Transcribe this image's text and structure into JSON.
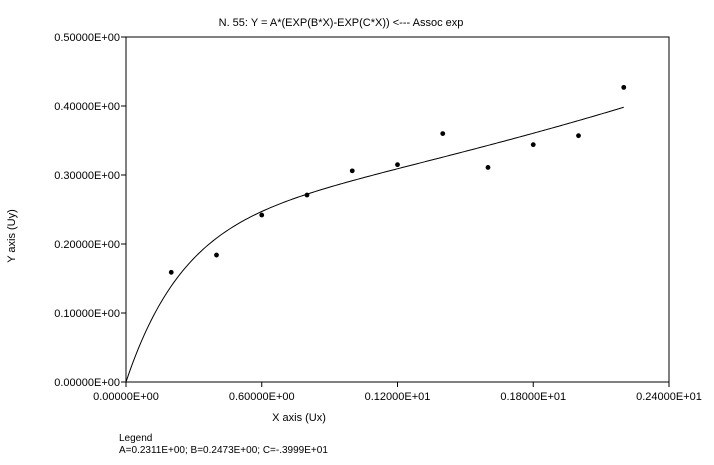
{
  "chart_data": {
    "type": "scatter",
    "title": "N. 55:  Y = A*(EXP(B*X)-EXP(C*X)) <--- Assoc exp",
    "xlabel": "X axis (Ux)",
    "ylabel": "Y axis (Uy)",
    "xlim": [
      0,
      2.4
    ],
    "ylim": [
      0,
      0.5
    ],
    "x_ticks": [
      0,
      0.6,
      1.2,
      1.8,
      2.4
    ],
    "x_tick_labels": [
      "0.00000E+00",
      "0.60000E+00",
      "0.12000E+01",
      "0.18000E+01",
      "0.24000E+01"
    ],
    "y_ticks": [
      0,
      0.1,
      0.2,
      0.3,
      0.4,
      0.5
    ],
    "y_tick_labels": [
      "0.00000E+00",
      "0.10000E+00",
      "0.20000E+00",
      "0.30000E+00",
      "0.40000E+00",
      "0.50000E+00"
    ],
    "grid": false,
    "points": {
      "x": [
        0.2,
        0.4,
        0.6,
        0.8,
        1.0,
        1.2,
        1.4,
        1.6,
        1.8,
        2.0,
        2.2
      ],
      "y": [
        0.159,
        0.184,
        0.242,
        0.271,
        0.306,
        0.315,
        0.36,
        0.311,
        0.344,
        0.357,
        0.427
      ]
    },
    "fit_curve": {
      "equation": "Y = A*(EXP(B*X)-EXP(C*X))",
      "A": 0.2311,
      "B": 0.2473,
      "C": -3.999,
      "x_range": [
        0,
        2.2
      ]
    },
    "legend": {
      "title": "Legend",
      "text": "A=0.2311E+00;  B=0.2473E+00;  C=-.3999E+01"
    }
  }
}
